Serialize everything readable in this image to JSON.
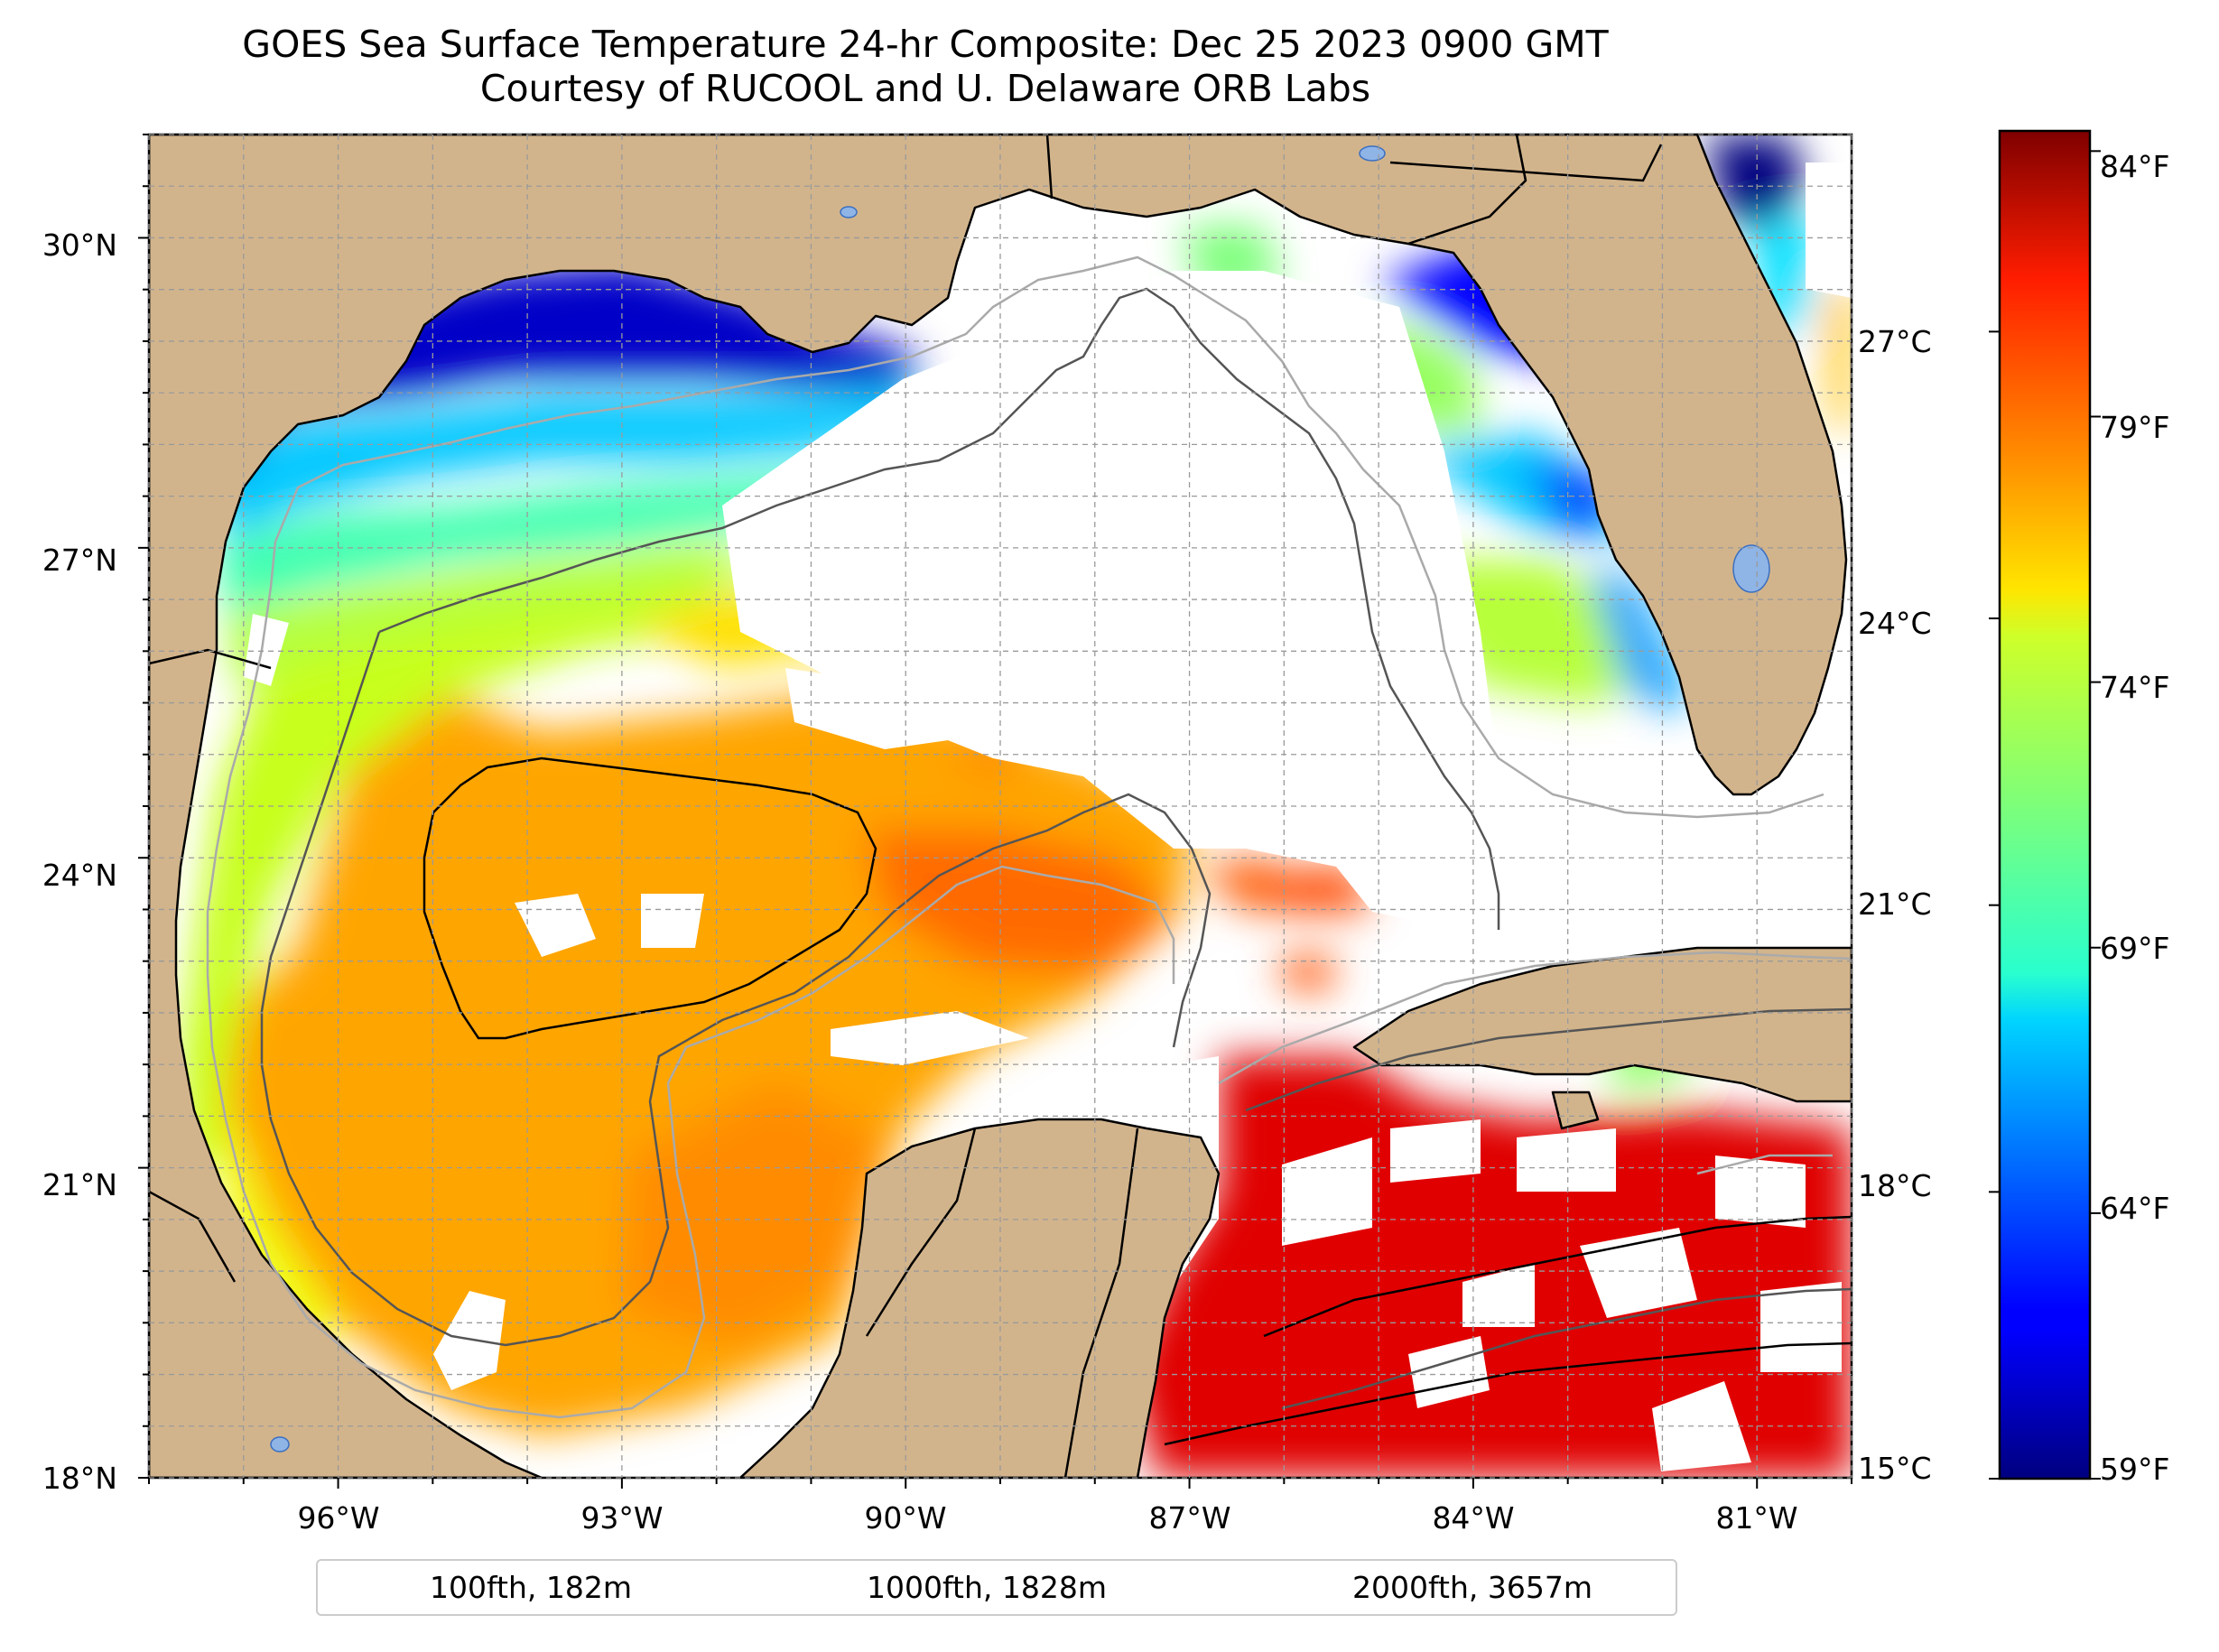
{
  "title": {
    "line1": "GOES Sea Surface Temperature 24-hr Composite: Dec 25 2023 0900 GMT",
    "line2": "Courtesy of RUCOOL and U. Delaware ORB Labs"
  },
  "map": {
    "projection": "equirectangular",
    "extent": {
      "lon_min": -98.0,
      "lon_max": -80.0,
      "lat_min": 18.0,
      "lat_max": 31.0
    },
    "lat_ticks": [
      {
        "value": 18,
        "label": "18°N"
      },
      {
        "value": 21,
        "label": "21°N"
      },
      {
        "value": 24,
        "label": "24°N"
      },
      {
        "value": 27,
        "label": "27°N"
      },
      {
        "value": 30,
        "label": "30°N"
      }
    ],
    "lon_ticks": [
      {
        "value": -96,
        "label": "96°W"
      },
      {
        "value": -93,
        "label": "93°W"
      },
      {
        "value": -90,
        "label": "90°W"
      },
      {
        "value": -87,
        "label": "87°W"
      },
      {
        "value": -84,
        "label": "84°W"
      },
      {
        "value": -81,
        "label": "81°W"
      }
    ],
    "gridlines": true,
    "colors": {
      "land": "#d2b48c",
      "no_data": "#ffffff",
      "lake": "#8fb4e6",
      "coastline": "#000000"
    }
  },
  "colorbar": {
    "colormap": "jet",
    "range_c": [
      15.0,
      29.1
    ],
    "celsius_ticks": [
      {
        "value": 15,
        "label": "15°C"
      },
      {
        "value": 18,
        "label": "18°C"
      },
      {
        "value": 21,
        "label": "21°C"
      },
      {
        "value": 24,
        "label": "24°C"
      },
      {
        "value": 27,
        "label": "27°C"
      }
    ],
    "fahrenheit_ticks": [
      {
        "value": 59,
        "label": "59°F"
      },
      {
        "value": 64,
        "label": "64°F"
      },
      {
        "value": 69,
        "label": "69°F"
      },
      {
        "value": 74,
        "label": "74°F"
      },
      {
        "value": 79,
        "label": "79°F"
      },
      {
        "value": 84,
        "label": "84°F"
      }
    ]
  },
  "legend": [
    {
      "label": "100fth, 182m",
      "color": "#aaaaaa"
    },
    {
      "label": "1000fth, 1828m",
      "color": "#555555"
    },
    {
      "label": "2000fth, 3657m",
      "color": "#000000"
    }
  ]
}
